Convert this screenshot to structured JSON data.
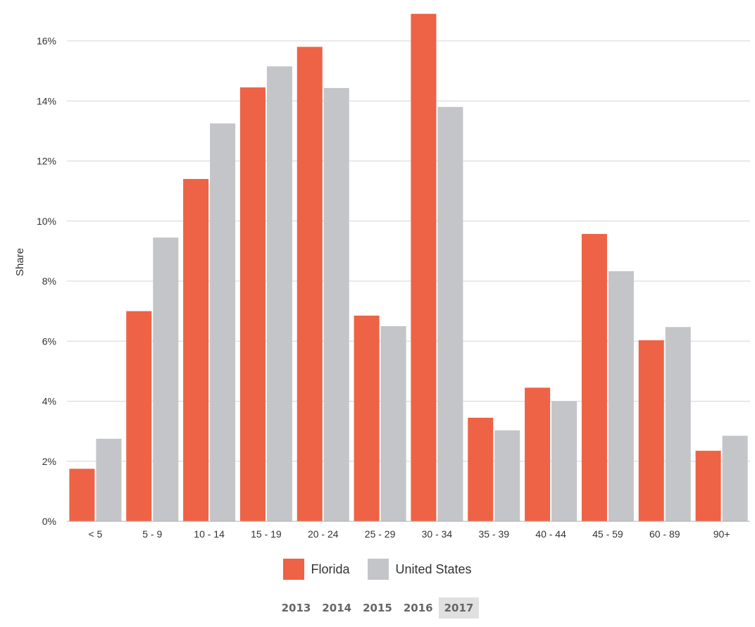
{
  "chart_data": {
    "type": "bar",
    "title": "",
    "xlabel": "",
    "ylabel": "Share",
    "ylim": [
      0,
      16
    ],
    "y_ticks": [
      "0%",
      "2%",
      "4%",
      "6%",
      "8%",
      "10%",
      "12%",
      "14%",
      "16%"
    ],
    "grid": true,
    "legend_placement": "bottom",
    "categories": [
      "< 5",
      "5 - 9",
      "10 - 14",
      "15 - 19",
      "20 - 24",
      "25 - 29",
      "30 - 34",
      "35 - 39",
      "40 - 44",
      "45 - 59",
      "60 - 89",
      "90+"
    ],
    "series": [
      {
        "name": "Florida",
        "color": "#ee6246",
        "values": [
          1.75,
          7.0,
          11.4,
          14.45,
          15.8,
          6.85,
          16.9,
          3.45,
          4.45,
          9.57,
          6.03,
          2.35
        ]
      },
      {
        "name": "United States",
        "color": "#c4c5c9",
        "values": [
          2.75,
          9.45,
          13.25,
          15.15,
          14.43,
          6.5,
          13.8,
          3.03,
          4.0,
          8.33,
          6.47,
          2.85
        ]
      }
    ]
  },
  "legend": {
    "items": [
      {
        "label": "Florida",
        "color": "#ee6246"
      },
      {
        "label": "United States",
        "color": "#c4c5c9"
      }
    ]
  },
  "year_selector": {
    "years": [
      "2013",
      "2014",
      "2015",
      "2016",
      "2017"
    ],
    "selected": "2017"
  }
}
